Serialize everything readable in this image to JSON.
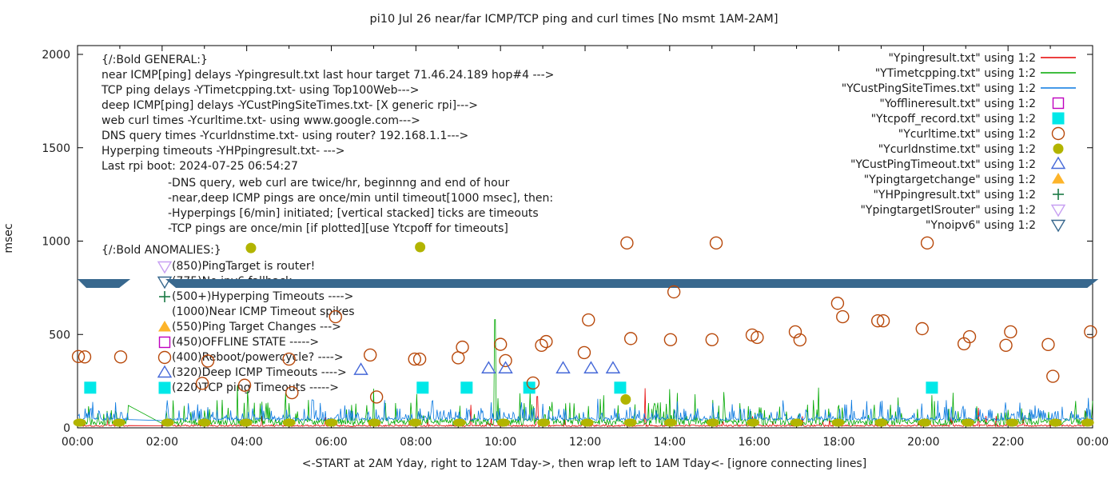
{
  "title": "pi10 Jul 26  near/far ICMP/TCP ping and curl times [No msmt 1AM-2AM]",
  "axes": {
    "ylabel": "msec",
    "xlabel": "<-START at 2AM Yday, right to 12AM Tday->, then wrap left to 1AM Tday<- [ignore connecting lines]",
    "y_ticks": [
      "0",
      "500",
      "1000",
      "1500",
      "2000"
    ],
    "x_ticks": [
      "00:00",
      "02:00",
      "04:00",
      "06:00",
      "08:00",
      "10:00",
      "12:00",
      "14:00",
      "16:00",
      "18:00",
      "20:00",
      "22:00",
      "00:00"
    ]
  },
  "annotations": {
    "general": {
      "header": "{/:Bold GENERAL:}",
      "lines": [
        "near ICMP[ping] delays -Ypingresult.txt last hour target 71.46.24.189 hop#4 --->",
        "TCP ping delays -YTimetcpping.txt- using Top100Web--->",
        "deep ICMP[ping] delays -YCustPingSiteTimes.txt- [X generic rpi]--->",
        "web curl times -Ycurltime.txt- using www.google.com--->",
        "DNS query times -Ycurldnstime.txt- using router? 192.168.1.1--->",
        "Hyperping timeouts -YHPpingresult.txt- --->",
        "Last rpi boot: 2024-07-25 06:54:27"
      ],
      "indented_lines": [
        "-DNS query, web curl are twice/hr, beginnng and end of hour",
        "-near,deep ICMP pings are once/min until timeout[1000 msec], then:",
        " -Hyperpings [6/min] initiated; [vertical stacked] ticks are timeouts",
        "-TCP pings are once/min [if plotted][use Ytcpoff for timeouts]"
      ]
    },
    "anomalies": {
      "header": "{/:Bold ANOMALIES:}",
      "items": [
        {
          "marker": "open-triangle-down",
          "color": "#c79ff2",
          "text": "(850)PingTarget is router!"
        },
        {
          "marker": "open-triangle-down",
          "color": "#38688e",
          "text": "(775)No ipv6 fallback"
        },
        {
          "marker": "plus",
          "color": "#1b7a45",
          "text": "(500+)Hyperping Timeouts ---->"
        },
        {
          "marker": "none",
          "color": "#1c1c1c",
          "text": "(1000)Near ICMP Timeout spikes"
        },
        {
          "marker": "filled-triangle-up",
          "color": "#fdb42a",
          "text": "(550)Ping Target Changes --->"
        },
        {
          "marker": "open-square",
          "color": "#bf00bf",
          "text": "(450)OFFLINE STATE ----->"
        },
        {
          "marker": "open-circle",
          "color": "#b8490b",
          "text": "(400)Reboot/powercycle? ---->"
        },
        {
          "marker": "open-triangle-up",
          "color": "#4568d8",
          "text": "(320)Deep ICMP Timeouts ---->"
        },
        {
          "marker": "filled-square",
          "color": "#00e8e8",
          "text": "(220)TCP ping Timeouts ----->"
        }
      ]
    }
  },
  "chart_data": {
    "type": "mixed",
    "title": "pi10 Jul 26  near/far ICMP/TCP ping and curl times [No msmt 1AM-2AM]",
    "xlabel": "<-START at 2AM Yday, right to 12AM Tday->, then wrap left to 1AM Tday<- [ignore connecting lines]",
    "ylabel": "msec",
    "ylim": [
      0,
      2000
    ],
    "x_range_hours": [
      0,
      24
    ],
    "grid": false,
    "legend_position": "top-right-inside",
    "no_measurement_gap_hours": [
      1.22,
      2.06
    ],
    "series": [
      {
        "name": "\"Ypingresult.txt\" using 1:2",
        "type": "line",
        "color": "#e60000",
        "baseline_msec": [
          6,
          18
        ],
        "spikes": [
          [
            9.3,
            123
          ],
          [
            10.87,
            168
          ],
          [
            13.42,
            212
          ],
          [
            21.3,
            107
          ],
          [
            23.83,
            86
          ]
        ]
      },
      {
        "name": "\"YTimetcpping.txt\" using 1:2",
        "type": "line",
        "color": "#00a800",
        "baseline_msec": [
          13,
          55
        ],
        "spikes": [
          [
            1.2,
            120
          ],
          [
            3.78,
            225
          ],
          [
            4.02,
            200
          ],
          [
            9.87,
            580
          ],
          [
            14.6,
            180
          ],
          [
            17.52,
            215
          ]
        ]
      },
      {
        "name": "\"YCustPingSiteTimes.txt\" using 1:2",
        "type": "line",
        "color": "#0878e0",
        "baseline_msec": [
          38,
          60
        ],
        "spikes": [
          [
            5.55,
            150
          ],
          [
            8.4,
            145
          ],
          [
            12.3,
            155
          ],
          [
            18.3,
            150
          ],
          [
            23.9,
            160
          ]
        ]
      },
      {
        "name": "\"Yofflineresult.txt\" using 1:2",
        "type": "points",
        "marker": "open-square",
        "color": "#bf00bf",
        "points": []
      },
      {
        "name": "\"Ytcpoff_record.txt\" using 1:2",
        "type": "points",
        "marker": "filled-square",
        "color": "#00e8e8",
        "points": [
          [
            0.3,
            215
          ],
          [
            8.16,
            215
          ],
          [
            9.2,
            215
          ],
          [
            10.68,
            215
          ],
          [
            12.83,
            215
          ],
          [
            20.2,
            215
          ]
        ]
      },
      {
        "name": "\"Ycurltime.txt\" using 1:2",
        "type": "points",
        "marker": "open-circle",
        "color": "#b8490b",
        "points": [
          [
            0.02,
            382
          ],
          [
            0.17,
            380
          ],
          [
            1.02,
            380
          ],
          [
            2.95,
            238
          ],
          [
            3.08,
            358
          ],
          [
            3.95,
            228
          ],
          [
            5.0,
            368
          ],
          [
            5.07,
            188
          ],
          [
            6.1,
            595
          ],
          [
            6.92,
            390
          ],
          [
            7.07,
            165
          ],
          [
            7.97,
            368
          ],
          [
            8.09,
            368
          ],
          [
            9.0,
            375
          ],
          [
            9.1,
            432
          ],
          [
            10.0,
            447
          ],
          [
            10.12,
            360
          ],
          [
            10.77,
            240
          ],
          [
            10.97,
            442
          ],
          [
            11.08,
            462
          ],
          [
            11.98,
            403
          ],
          [
            12.08,
            578
          ],
          [
            12.99,
            990
          ],
          [
            13.08,
            478
          ],
          [
            14.02,
            472
          ],
          [
            14.1,
            728
          ],
          [
            15.0,
            472
          ],
          [
            15.1,
            990
          ],
          [
            15.95,
            497
          ],
          [
            16.07,
            484
          ],
          [
            16.97,
            514
          ],
          [
            17.08,
            471
          ],
          [
            17.97,
            667
          ],
          [
            18.09,
            595
          ],
          [
            18.92,
            573
          ],
          [
            19.05,
            573
          ],
          [
            19.97,
            531
          ],
          [
            20.09,
            990
          ],
          [
            20.96,
            450
          ],
          [
            21.09,
            488
          ],
          [
            21.95,
            442
          ],
          [
            22.06,
            514
          ],
          [
            22.95,
            446
          ],
          [
            23.06,
            276
          ],
          [
            23.95,
            514
          ]
        ]
      },
      {
        "name": "\"Ycurldnstime.txt\" using 1:2",
        "type": "points",
        "marker": "filled-circle",
        "color": "#b2b400",
        "points": [
          [
            4.1,
            963
          ],
          [
            8.1,
            968
          ],
          [
            12.96,
            152
          ]
        ],
        "hourly_low_value_msec": 28,
        "hourly_low_hours": [
          0.05,
          0.98,
          2.13,
          3.0,
          3.98,
          5.0,
          6.0,
          7.02,
          7.98,
          9.03,
          10.07,
          11.02,
          12.05,
          13.07,
          14.02,
          15.02,
          15.97,
          17.0,
          17.98,
          19.0,
          20.03,
          21.05,
          22.1,
          23.12,
          23.88
        ]
      },
      {
        "name": "\"YCustPingTimeout.txt\" using 1:2",
        "type": "points",
        "marker": "open-triangle-up",
        "color": "#4568d8",
        "points": [
          [
            6.7,
            310
          ],
          [
            9.72,
            318
          ],
          [
            10.12,
            318
          ],
          [
            11.48,
            318
          ],
          [
            12.14,
            318
          ],
          [
            12.66,
            318
          ]
        ]
      },
      {
        "name": "\"Ypingtargetchange\" using 1:2",
        "type": "points",
        "marker": "filled-triangle-up",
        "color": "#fdb42a",
        "points": []
      },
      {
        "name": "\"YHPpingresult.txt\" using 1:2",
        "type": "points",
        "marker": "plus",
        "color": "#1b7a45",
        "points": []
      },
      {
        "name": "\"YpingtargetISrouter\" using 1:2",
        "type": "points",
        "marker": "open-triangle-down",
        "color": "#c79ff2",
        "points": []
      },
      {
        "name": "\"Ynoipv6\" using 1:2",
        "type": "band",
        "marker": "open-triangle-down",
        "color": "#38688e",
        "value_msec": 773,
        "segments_hours": [
          [
            0,
            1.25
          ],
          [
            2.08,
            24.1
          ]
        ]
      }
    ]
  }
}
